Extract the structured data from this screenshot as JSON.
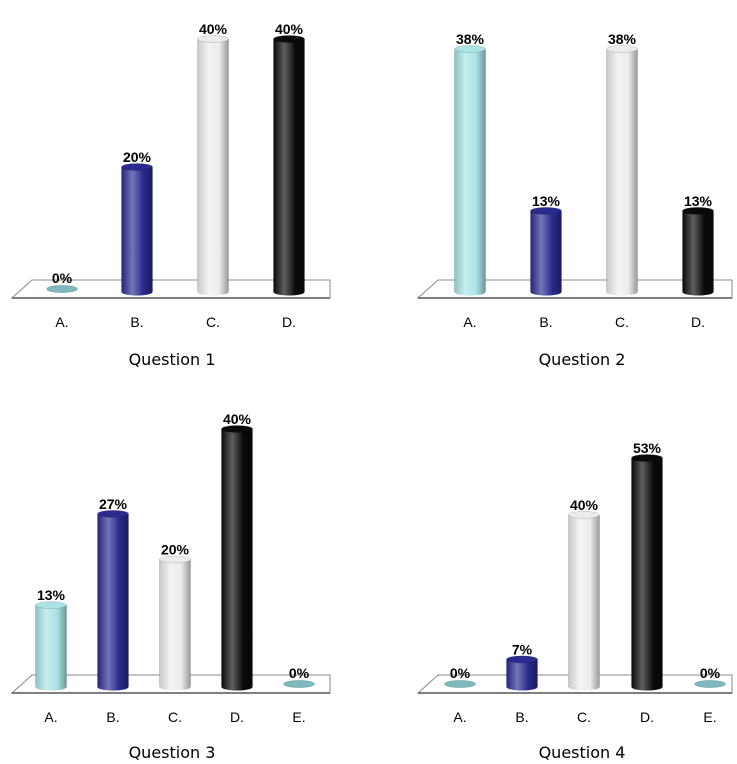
{
  "chart_data": [
    {
      "type": "bar",
      "title": "Question 1",
      "categories": [
        "A.",
        "B.",
        "C.",
        "D."
      ],
      "values": [
        0,
        20,
        40,
        40
      ],
      "value_labels": [
        "0%",
        "20%",
        "40%",
        "40%"
      ],
      "ylim": [
        0,
        40
      ],
      "colors": [
        "#a9e3e6",
        "#2a2a8f",
        "#ececec",
        "#0a0a0a"
      ]
    },
    {
      "type": "bar",
      "title": "Question 2",
      "categories": [
        "A.",
        "B.",
        "C.",
        "D."
      ],
      "values": [
        38,
        13,
        38,
        13
      ],
      "value_labels": [
        "38%",
        "13%",
        "38%",
        "13%"
      ],
      "ylim": [
        0,
        38
      ],
      "colors": [
        "#a9e3e6",
        "#2a2a8f",
        "#ececec",
        "#0a0a0a"
      ]
    },
    {
      "type": "bar",
      "title": "Question 3",
      "categories": [
        "A.",
        "B.",
        "C.",
        "D.",
        "E."
      ],
      "values": [
        13,
        27,
        20,
        40,
        0
      ],
      "value_labels": [
        "13%",
        "27%",
        "20%",
        "40%",
        "0%"
      ],
      "ylim": [
        0,
        40
      ],
      "colors": [
        "#a9e3e6",
        "#2a2a8f",
        "#ececec",
        "#0a0a0a",
        "#a9e3e6"
      ]
    },
    {
      "type": "bar",
      "title": "Question 4",
      "categories": [
        "A.",
        "B.",
        "C.",
        "D.",
        "E."
      ],
      "values": [
        0,
        7,
        40,
        53,
        0
      ],
      "value_labels": [
        "0%",
        "7%",
        "40%",
        "53%",
        "0%"
      ],
      "ylim": [
        0,
        53
      ],
      "colors": [
        "#a9e3e6",
        "#2a2a8f",
        "#ececec",
        "#0a0a0a",
        "#a9e3e6"
      ]
    }
  ]
}
